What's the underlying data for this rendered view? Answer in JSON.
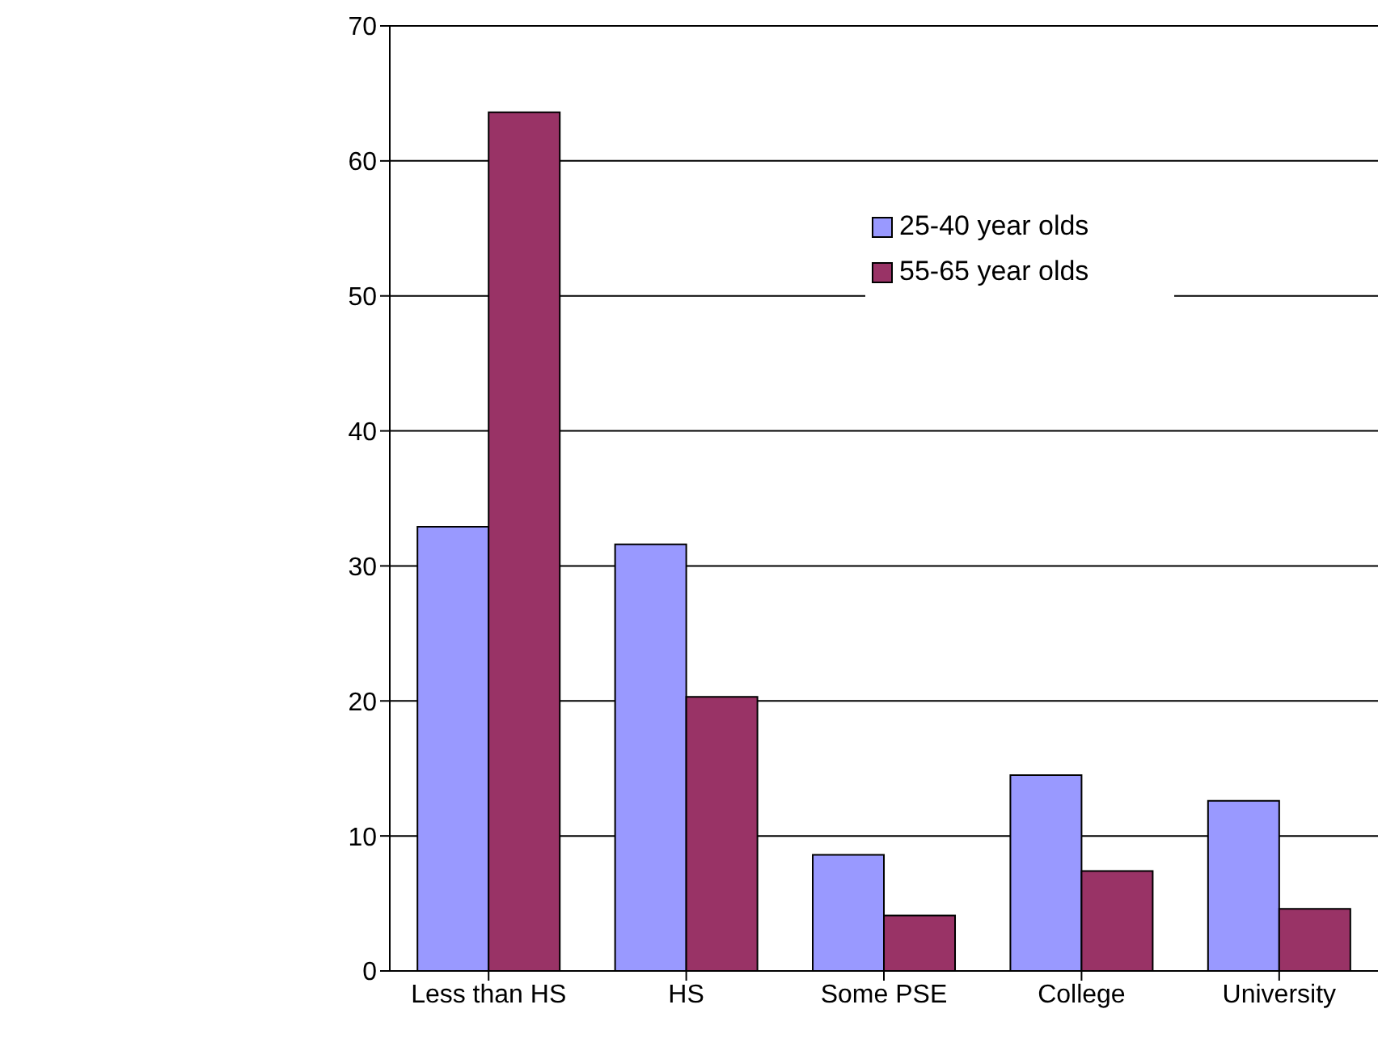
{
  "chart_data": {
    "type": "bar",
    "categories": [
      "Less than HS",
      "HS",
      "Some PSE",
      "College",
      "University"
    ],
    "series": [
      {
        "name": "25-40 year olds",
        "color": "#9999ff",
        "values": [
          32.9,
          31.6,
          8.6,
          14.5,
          12.6
        ]
      },
      {
        "name": "55-65 year olds",
        "color": "#993366",
        "values": [
          63.6,
          20.3,
          4.1,
          7.4,
          4.6
        ]
      }
    ],
    "ylim": [
      0,
      70
    ],
    "yticks": [
      0,
      10,
      20,
      30,
      40,
      50,
      60,
      70
    ],
    "grid": "y",
    "legend": "top right"
  }
}
